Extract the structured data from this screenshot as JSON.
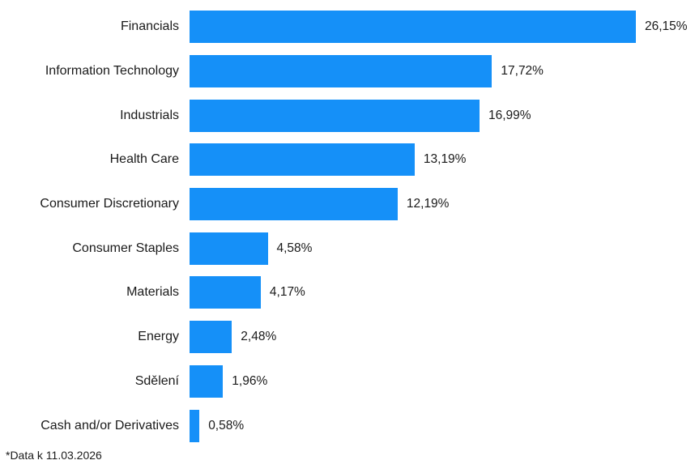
{
  "chart_data": {
    "type": "bar",
    "orientation": "horizontal",
    "title": "",
    "xlabel": "",
    "ylabel": "",
    "grid": false,
    "legend": false,
    "xlim": [
      0,
      26.15
    ],
    "bar_color": "#1590F8",
    "categories": [
      "Financials",
      "Information Technology",
      "Industrials",
      "Health Care",
      "Consumer Discretionary",
      "Consumer Staples",
      "Materials",
      "Energy",
      "Sdělení",
      "Cash and/or Derivatives"
    ],
    "values": [
      26.15,
      17.72,
      16.99,
      13.19,
      12.19,
      4.58,
      4.17,
      2.48,
      1.96,
      0.58
    ],
    "value_labels": [
      "26,15%",
      "17,72%",
      "16,99%",
      "13,19%",
      "12,19%",
      "4,58%",
      "4,17%",
      "2,48%",
      "1,96%",
      "0,58%"
    ]
  },
  "footer": {
    "note": "*Data k 11.03.2026"
  },
  "colors": {
    "accent": "#1590F8",
    "text": "#1A1A1A",
    "background": "#FFFFFF"
  }
}
